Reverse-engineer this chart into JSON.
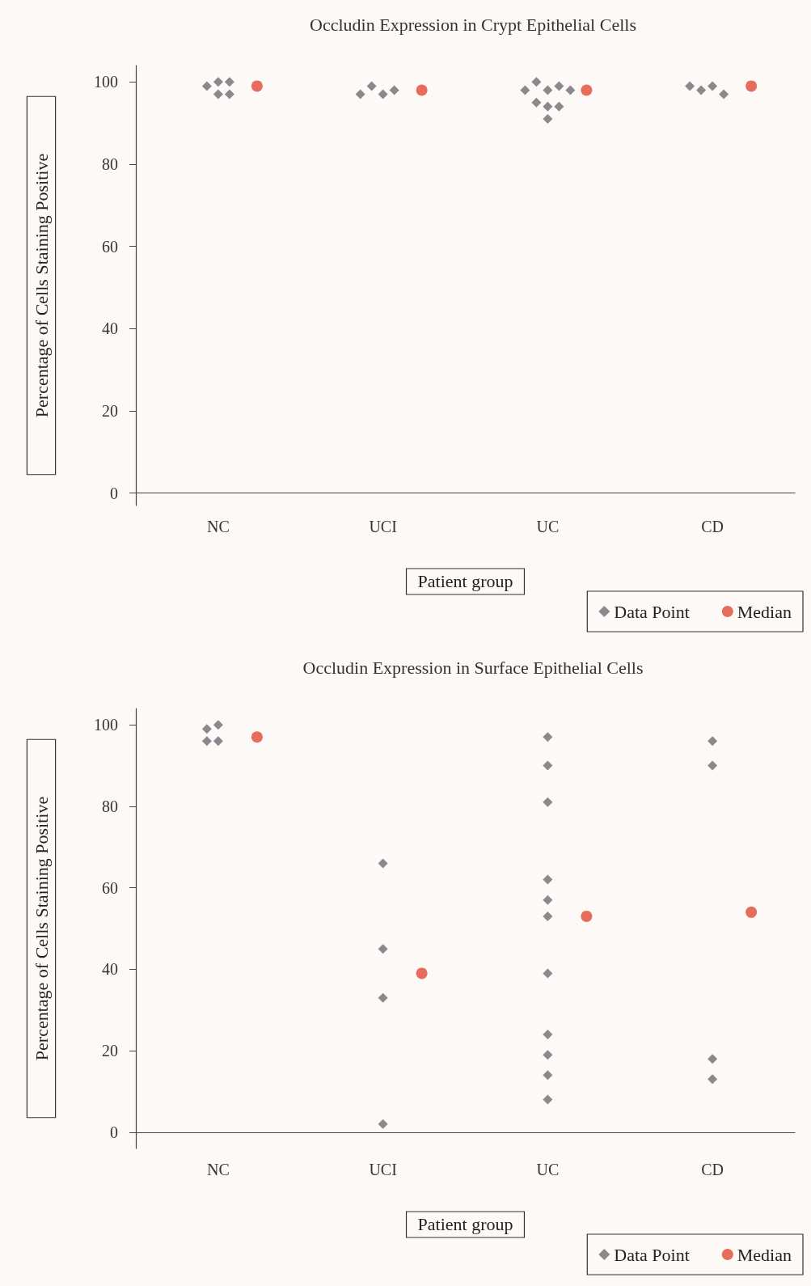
{
  "chart_data": [
    {
      "type": "scatter",
      "title": "Occludin Expression in Crypt Epithelial Cells",
      "xlabel": "Patient group",
      "ylabel": "Percentage of Cells Staining Positive",
      "categories": [
        "NC",
        "UCI",
        "UC",
        "CD"
      ],
      "ylim": [
        -3,
        104
      ],
      "yticks": [
        0,
        20,
        40,
        60,
        80,
        100
      ],
      "grid": false,
      "legend": "bottom right",
      "series": [
        {
          "name": "Data Point",
          "color": "#706b74",
          "marker": "diamond",
          "x": [
            "NC",
            "NC",
            "NC",
            "NC",
            "NC",
            "UCI",
            "UCI",
            "UCI",
            "UCI",
            "UC",
            "UC",
            "UC",
            "UC",
            "UC",
            "UC",
            "UC",
            "UC",
            "UC",
            "CD",
            "CD",
            "CD",
            "CD"
          ],
          "values": [
            100,
            97,
            99,
            100,
            97,
            97,
            99,
            98,
            97,
            98,
            100,
            99,
            98,
            98,
            94,
            95,
            94,
            91,
            99,
            98,
            97,
            99
          ]
        },
        {
          "name": "Median",
          "color": "#e04a35",
          "marker": "circle",
          "x": [
            "NC",
            "UCI",
            "UC",
            "CD"
          ],
          "values": [
            99,
            98,
            98,
            99
          ]
        }
      ]
    },
    {
      "type": "scatter",
      "title": "Occludin Expression in Surface Epithelial Cells",
      "xlabel": "Patient group",
      "ylabel": "Percentage of Cells Staining Positive",
      "categories": [
        "NC",
        "UCI",
        "UC",
        "CD"
      ],
      "ylim": [
        -4,
        104
      ],
      "yticks": [
        0,
        20,
        40,
        60,
        80,
        100
      ],
      "grid": false,
      "legend": "bottom right",
      "series": [
        {
          "name": "Data Point",
          "color": "#706b74",
          "marker": "diamond",
          "x": [
            "NC",
            "NC",
            "NC",
            "NC",
            "UCI",
            "UCI",
            "UCI",
            "UCI",
            "UC",
            "UC",
            "UC",
            "UC",
            "UC",
            "UC",
            "UC",
            "UC",
            "UC",
            "UC",
            "UC",
            "CD",
            "CD",
            "CD",
            "CD"
          ],
          "values": [
            96,
            100,
            99,
            96,
            66,
            45,
            33,
            2,
            97,
            90,
            81,
            62,
            57,
            53,
            39,
            24,
            19,
            14,
            8,
            96,
            90,
            18,
            13
          ]
        },
        {
          "name": "Median",
          "color": "#e04a35",
          "marker": "circle",
          "x": [
            "NC",
            "UCI",
            "UC",
            "CD"
          ],
          "values": [
            97,
            39,
            53,
            54
          ]
        }
      ]
    }
  ]
}
